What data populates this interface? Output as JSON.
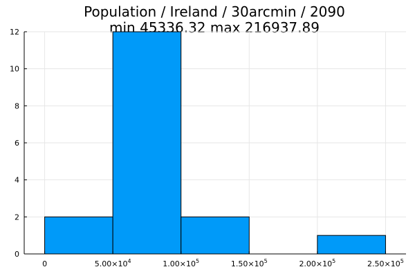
{
  "chart_data": {
    "type": "bar",
    "title": "Population / Ireland / 30arcmin / 2090",
    "subtitle": "min 45336.32  max 216937.89",
    "xlabel": "",
    "ylabel": "",
    "xlim": [
      -15000,
      265000
    ],
    "ylim": [
      0,
      12
    ],
    "grid": true,
    "legend": "none",
    "bar_color": "#009af9",
    "bins": [
      {
        "x0": 0,
        "x1": 50000,
        "count": 2
      },
      {
        "x0": 50000,
        "x1": 100000,
        "count": 12
      },
      {
        "x0": 100000,
        "x1": 150000,
        "count": 2
      },
      {
        "x0": 150000,
        "x1": 200000,
        "count": 0
      },
      {
        "x0": 200000,
        "x1": 250000,
        "count": 1
      }
    ],
    "x_ticks": [
      {
        "value": 0,
        "mantissa": "0",
        "exp": ""
      },
      {
        "value": 50000,
        "mantissa": "5.00×10",
        "exp": "4"
      },
      {
        "value": 100000,
        "mantissa": "1.00×10",
        "exp": "5"
      },
      {
        "value": 150000,
        "mantissa": "1.50×10",
        "exp": "5"
      },
      {
        "value": 200000,
        "mantissa": "2.00×10",
        "exp": "5"
      },
      {
        "value": 250000,
        "mantissa": "2.50×10",
        "exp": "5"
      }
    ],
    "y_ticks": [
      0,
      2,
      4,
      6,
      8,
      10,
      12
    ]
  }
}
